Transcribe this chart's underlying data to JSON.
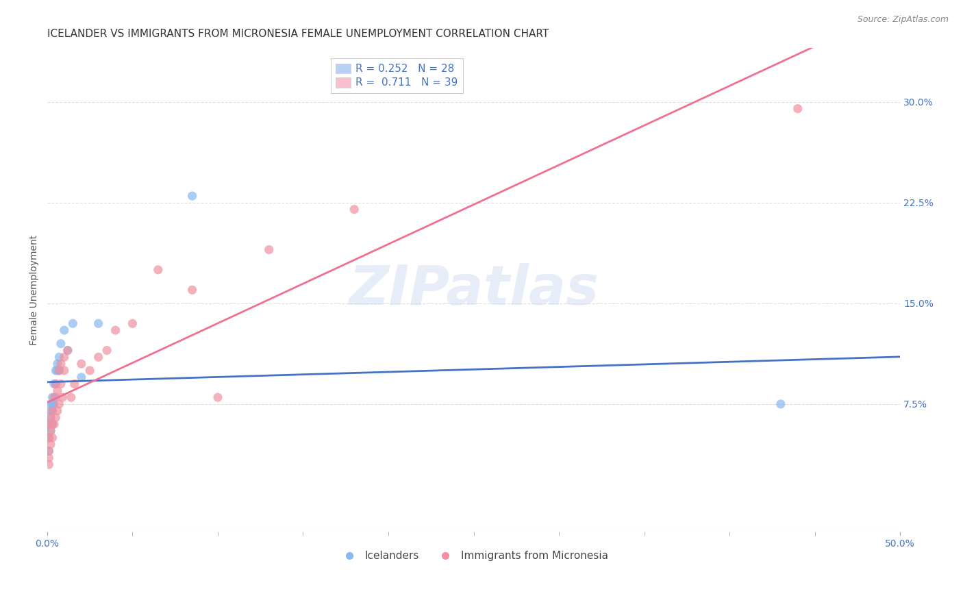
{
  "title": "ICELANDER VS IMMIGRANTS FROM MICRONESIA FEMALE UNEMPLOYMENT CORRELATION CHART",
  "source": "Source: ZipAtlas.com",
  "ylabel": "Female Unemployment",
  "ylabel_ticks": [
    "7.5%",
    "15.0%",
    "22.5%",
    "30.0%"
  ],
  "ylabel_values": [
    0.075,
    0.15,
    0.225,
    0.3
  ],
  "xlim": [
    0.0,
    0.5
  ],
  "ylim": [
    -0.02,
    0.34
  ],
  "watermark_text": "ZIPatlas",
  "legend_label1": "R = 0.252   N = 28",
  "legend_label2": "R =  0.711   N = 39",
  "series1_label": "Icelanders",
  "series2_label": "Immigrants from Micronesia",
  "series1_color": "#85b8f0",
  "series2_color": "#f090a0",
  "line1_color": "#4472c4",
  "line2_color": "#f07090",
  "legend1_facecolor": "#b8d0f5",
  "legend2_facecolor": "#f8c0cc",
  "icelanders_x": [
    0.001,
    0.001,
    0.001,
    0.002,
    0.002,
    0.002,
    0.002,
    0.003,
    0.003,
    0.003,
    0.003,
    0.004,
    0.004,
    0.005,
    0.005,
    0.005,
    0.006,
    0.006,
    0.007,
    0.007,
    0.008,
    0.01,
    0.012,
    0.015,
    0.02,
    0.03,
    0.085,
    0.43
  ],
  "icelanders_y": [
    0.04,
    0.05,
    0.06,
    0.055,
    0.065,
    0.07,
    0.075,
    0.06,
    0.07,
    0.075,
    0.08,
    0.075,
    0.09,
    0.08,
    0.09,
    0.1,
    0.1,
    0.105,
    0.1,
    0.11,
    0.12,
    0.13,
    0.115,
    0.135,
    0.095,
    0.135,
    0.23,
    0.075
  ],
  "micronesia_x": [
    0.001,
    0.001,
    0.001,
    0.001,
    0.001,
    0.002,
    0.002,
    0.002,
    0.003,
    0.003,
    0.003,
    0.004,
    0.004,
    0.005,
    0.005,
    0.006,
    0.006,
    0.007,
    0.007,
    0.008,
    0.008,
    0.009,
    0.01,
    0.01,
    0.012,
    0.014,
    0.016,
    0.02,
    0.025,
    0.03,
    0.035,
    0.04,
    0.05,
    0.065,
    0.085,
    0.1,
    0.13,
    0.18,
    0.44
  ],
  "micronesia_y": [
    0.04,
    0.05,
    0.06,
    0.03,
    0.035,
    0.045,
    0.055,
    0.065,
    0.05,
    0.06,
    0.07,
    0.06,
    0.08,
    0.065,
    0.09,
    0.07,
    0.085,
    0.075,
    0.1,
    0.09,
    0.105,
    0.08,
    0.1,
    0.11,
    0.115,
    0.08,
    0.09,
    0.105,
    0.1,
    0.11,
    0.115,
    0.13,
    0.135,
    0.175,
    0.16,
    0.08,
    0.19,
    0.22,
    0.295
  ],
  "grid_color": "#dddddd",
  "background_color": "#ffffff",
  "title_fontsize": 11,
  "ylabel_fontsize": 10,
  "tick_fontsize": 10,
  "source_fontsize": 9
}
